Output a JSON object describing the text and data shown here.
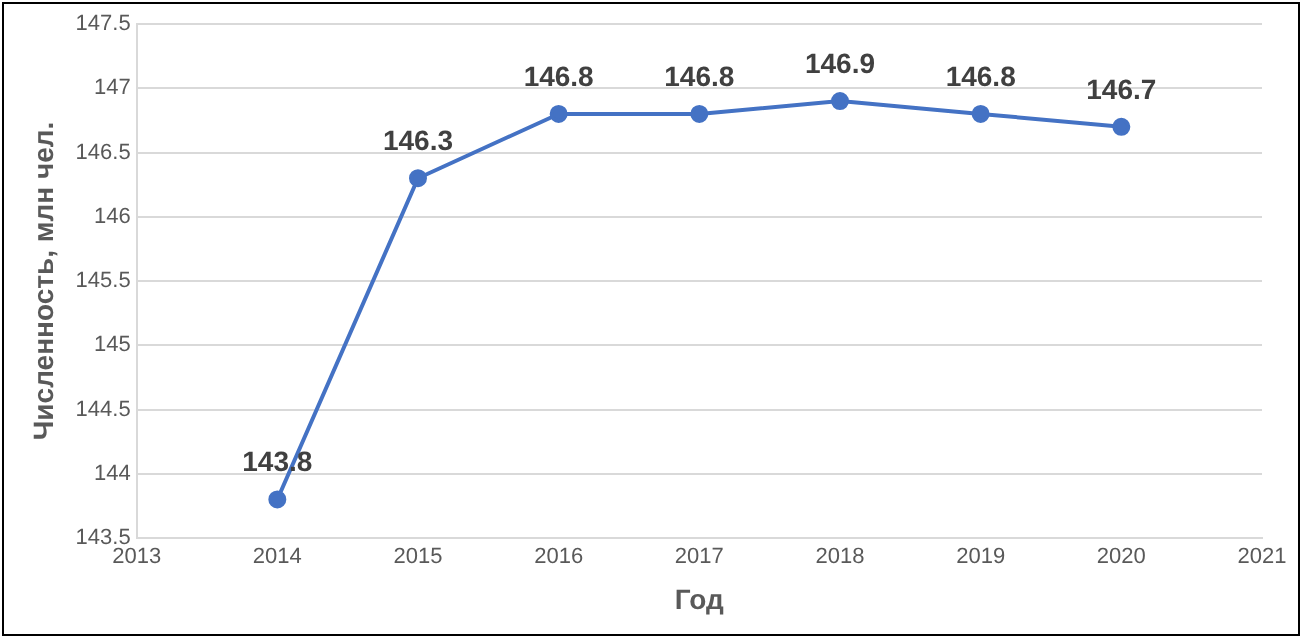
{
  "chart_data": {
    "type": "line",
    "xlabel": "Год",
    "ylabel": "Численность, млн чел.",
    "x": [
      2014,
      2015,
      2016,
      2017,
      2018,
      2019,
      2020
    ],
    "series": [
      {
        "color": "#4472c4",
        "values": [
          143.8,
          146.3,
          146.8,
          146.8,
          146.9,
          146.8,
          146.7
        ]
      }
    ],
    "xlim": [
      2013,
      2021
    ],
    "xticks": [
      2013,
      2014,
      2015,
      2016,
      2017,
      2018,
      2019,
      2020,
      2021
    ],
    "ylim": [
      143.5,
      147.5
    ],
    "yticks": [
      143.5,
      144,
      144.5,
      145,
      145.5,
      146,
      146.5,
      147,
      147.5
    ],
    "grid": "y",
    "marker": "circle",
    "line_style": "solid",
    "data_labels": true,
    "legend": false
  }
}
